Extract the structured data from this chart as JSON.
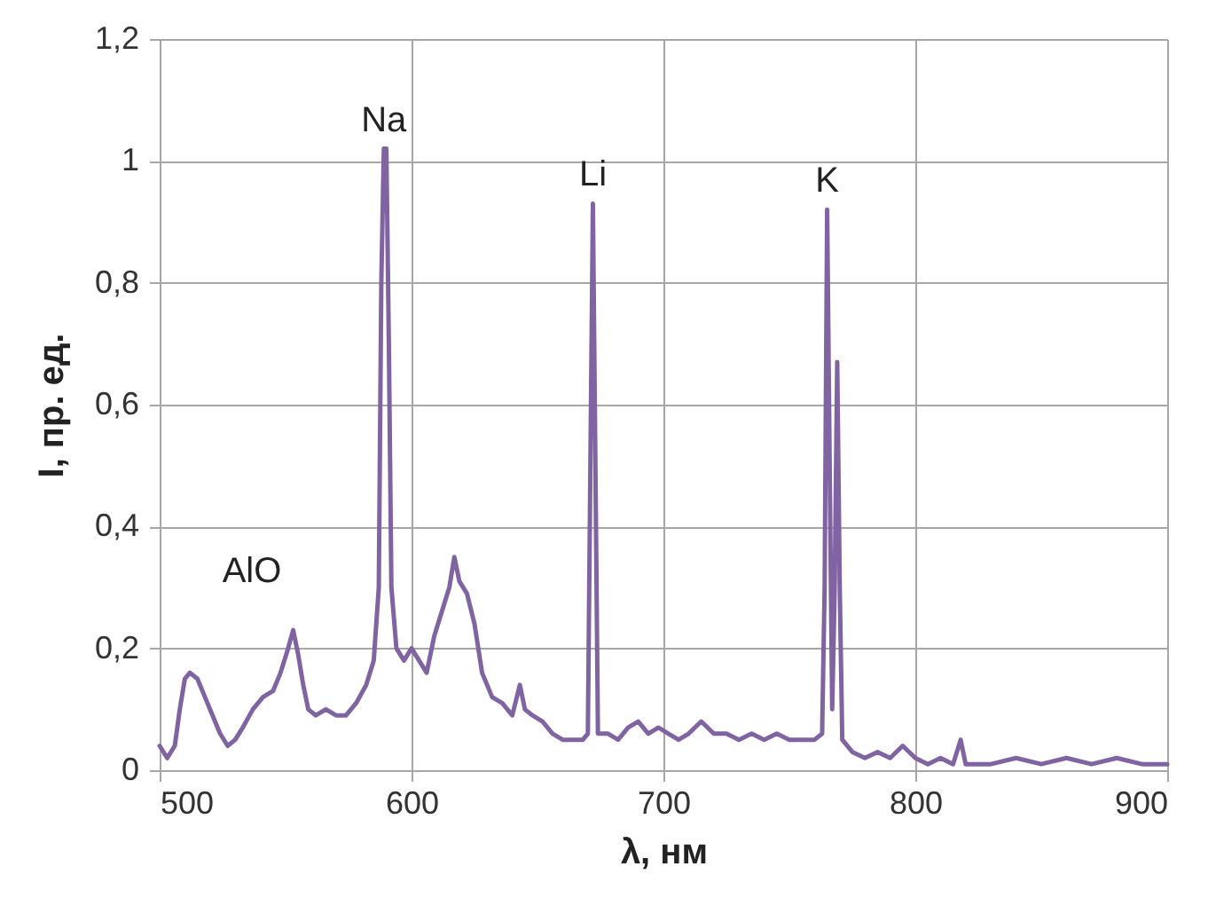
{
  "chart_data": {
    "type": "line",
    "xlabel": "λ, нм",
    "ylabel": "I, пр. ед.",
    "xlim": [
      500,
      900
    ],
    "xticks": [
      500,
      600,
      700,
      800,
      900
    ],
    "ylim": [
      0,
      1.2
    ],
    "yticks": [
      0,
      {
        "value": 0.2,
        "label": "0,2"
      },
      {
        "value": 0.4,
        "label": "0,4"
      },
      {
        "value": 0.6,
        "label": "0,6"
      },
      {
        "value": 0.8,
        "label": "0,8"
      },
      1,
      {
        "value": 1.2,
        "label": "1,2"
      }
    ],
    "grid": true,
    "marker": "none",
    "line_style": "solid",
    "annotations": [
      "AlO",
      {
        "text": "Na",
        "x": 589,
        "y": 1.02
      },
      {
        "text": "Li",
        "x": 672,
        "y": 0.93
      },
      {
        "text": "K",
        "x": 765,
        "y": 0.92
      }
    ],
    "series": [
      {
        "color": "#8064a2",
        "x": [
          500,
          503,
          506,
          508,
          510,
          512,
          515,
          518,
          521,
          524,
          527,
          530,
          533,
          537,
          541,
          545,
          548,
          551,
          553,
          555,
          557,
          559,
          562,
          566,
          570,
          574,
          578,
          582,
          585,
          587,
          588,
          589,
          590,
          591,
          592,
          594,
          597,
          600,
          603,
          606,
          609,
          612,
          615,
          617,
          619,
          622,
          625,
          628,
          632,
          636,
          640,
          643,
          645,
          648,
          652,
          656,
          660,
          664,
          668,
          670,
          671,
          672,
          673,
          674,
          678,
          682,
          686,
          690,
          694,
          698,
          702,
          706,
          710,
          715,
          720,
          725,
          730,
          735,
          740,
          745,
          750,
          755,
          760,
          763,
          764,
          765,
          766,
          767,
          768,
          769,
          770,
          771,
          775,
          780,
          785,
          790,
          795,
          800,
          805,
          810,
          815,
          818,
          820,
          830,
          840,
          850,
          860,
          870,
          880,
          890,
          900
        ],
        "values": [
          0.04,
          0.02,
          0.04,
          0.1,
          0.15,
          0.16,
          0.15,
          0.12,
          0.09,
          0.06,
          0.04,
          0.05,
          0.07,
          0.1,
          0.12,
          0.13,
          0.16,
          0.2,
          0.23,
          0.19,
          0.14,
          0.1,
          0.09,
          0.1,
          0.09,
          0.09,
          0.11,
          0.14,
          0.18,
          0.3,
          0.8,
          1.02,
          1.02,
          0.7,
          0.3,
          0.2,
          0.18,
          0.2,
          0.18,
          0.16,
          0.22,
          0.26,
          0.3,
          0.35,
          0.31,
          0.29,
          0.24,
          0.16,
          0.12,
          0.11,
          0.09,
          0.14,
          0.1,
          0.09,
          0.08,
          0.06,
          0.05,
          0.05,
          0.05,
          0.06,
          0.5,
          0.93,
          0.5,
          0.06,
          0.06,
          0.05,
          0.07,
          0.08,
          0.06,
          0.07,
          0.06,
          0.05,
          0.06,
          0.08,
          0.06,
          0.06,
          0.05,
          0.06,
          0.05,
          0.06,
          0.05,
          0.05,
          0.05,
          0.06,
          0.3,
          0.92,
          0.5,
          0.1,
          0.3,
          0.67,
          0.3,
          0.05,
          0.03,
          0.02,
          0.03,
          0.02,
          0.04,
          0.02,
          0.01,
          0.02,
          0.01,
          0.05,
          0.01,
          0.01,
          0.02,
          0.01,
          0.02,
          0.01,
          0.02,
          0.01,
          0.01
        ]
      }
    ]
  }
}
